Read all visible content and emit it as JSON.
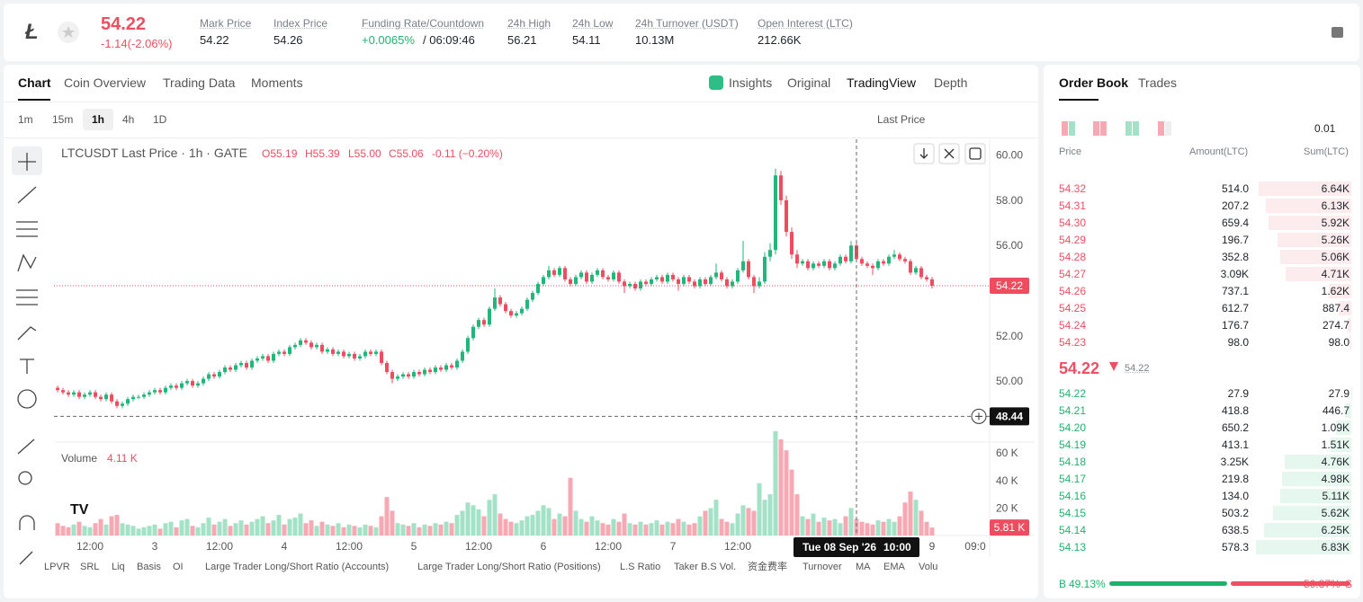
{
  "header": {
    "price": "54.22",
    "change": "-1.14(-2.06%)",
    "stats": [
      {
        "label": "Mark Price",
        "value": "54.22"
      },
      {
        "label": "Index Price",
        "value": "54.26"
      },
      {
        "label": "Funding Rate/Countdown",
        "value": "+0.0065%",
        "countdown": "/ 06:09:46"
      },
      {
        "label": "24h High",
        "value": "56.21"
      },
      {
        "label": "24h Low",
        "value": "54.11"
      },
      {
        "label": "24h Turnover (USDT)",
        "value": "10.13M"
      },
      {
        "label": "Open Interest (LTC)",
        "value": "212.66K"
      }
    ]
  },
  "tabs": [
    "Chart",
    "Coin Overview",
    "Trading Data",
    "Moments"
  ],
  "views": [
    "Insights",
    "Original",
    "TradingView",
    "Depth"
  ],
  "intervals": [
    "1m",
    "15m",
    "1h",
    "4h",
    "1D"
  ],
  "price_type": "Last Price",
  "chart_data": {
    "type": "candlestick",
    "title": "LTCUSDT Last Price · 1h · GATE",
    "ohlc_legend": [
      "O55.19",
      "H55.39",
      "L55.00",
      "C55.06",
      "-0.11 (−0.20%)"
    ],
    "up_color": "#22b67a",
    "down_color": "#ee4d5f",
    "up_volume_color": "#a4e2c8",
    "down_volume_color": "#f6a9b3",
    "xlim": [
      -0.67,
      172.67
    ],
    "ylim": [
      47.3,
      60.7
    ],
    "yticks": [
      {
        "value": 60,
        "label": "60.00"
      },
      {
        "value": 58,
        "label": "58.00"
      },
      {
        "value": 56,
        "label": "56.00"
      },
      {
        "value": 52,
        "label": "52.00"
      },
      {
        "value": 50,
        "label": "50.00"
      }
    ],
    "xticks": [
      {
        "value": 6,
        "label": "12:00"
      },
      {
        "value": 18,
        "label": "3"
      },
      {
        "value": 30,
        "label": "12:00"
      },
      {
        "value": 42,
        "label": "4"
      },
      {
        "value": 54,
        "label": "12:00"
      },
      {
        "value": 66,
        "label": "5"
      },
      {
        "value": 78,
        "label": "12:00"
      },
      {
        "value": 90,
        "label": "6"
      },
      {
        "value": 102,
        "label": "12:00"
      },
      {
        "value": 114,
        "label": "7"
      },
      {
        "value": 126,
        "label": "12:00"
      },
      {
        "value": 162,
        "label": "9"
      },
      {
        "value": 170,
        "label": "09:0"
      }
    ],
    "open": [
      49.7,
      49.6,
      49.5,
      49.4,
      49.5,
      49.3,
      49.4,
      49.5,
      49.3,
      49.2,
      49.4,
      49.1,
      48.9,
      49.0,
      49.2,
      49.3,
      49.3,
      49.4,
      49.5,
      49.6,
      49.5,
      49.7,
      49.8,
      49.7,
      49.9,
      50.0,
      49.8,
      49.9,
      50.1,
      50.3,
      50.2,
      50.4,
      50.6,
      50.5,
      50.7,
      50.8,
      50.6,
      50.9,
      51.0,
      51.1,
      50.9,
      51.2,
      51.3,
      51.2,
      51.5,
      51.6,
      51.8,
      51.7,
      51.5,
      51.6,
      51.3,
      51.4,
      51.2,
      51.3,
      51.1,
      51.2,
      51.0,
      51.1,
      51.3,
      51.2,
      51.3,
      50.8,
      50.4,
      50.1,
      50.2,
      50.3,
      50.2,
      50.4,
      50.3,
      50.5,
      50.4,
      50.6,
      50.5,
      50.7,
      50.6,
      50.9,
      51.3,
      51.9,
      52.4,
      52.7,
      52.5,
      53.2,
      53.7,
      53.4,
      53.1,
      52.9,
      53.0,
      53.2,
      53.6,
      53.9,
      54.3,
      54.6,
      54.9,
      54.7,
      55.0,
      54.5,
      54.3,
      54.6,
      54.8,
      54.4,
      54.7,
      54.9,
      54.6,
      54.5,
      54.8,
      54.4,
      54.2,
      54.3,
      54.1,
      54.4,
      54.3,
      54.5,
      54.6,
      54.4,
      54.7,
      54.5,
      54.3,
      54.6,
      54.4,
      54.2,
      54.5,
      54.3,
      54.6,
      54.8,
      54.5,
      54.2,
      54.4,
      54.9,
      55.3,
      54.6,
      54.2,
      54.4,
      55.5,
      55.8,
      59.1,
      58.0,
      56.6,
      55.6,
      55.2,
      55.3,
      55.0,
      55.2,
      55.1,
      55.3,
      55.0,
      55.2,
      55.5,
      55.3,
      56.0,
      55.4,
      55.2,
      55.1,
      55.0,
      55.3,
      55.2,
      55.5,
      55.6,
      55.4,
      55.3,
      54.8,
      55.0,
      54.6,
      54.5
    ],
    "high": [
      49.8,
      49.7,
      49.6,
      49.6,
      49.6,
      49.5,
      49.6,
      49.6,
      49.4,
      49.5,
      49.5,
      49.2,
      49.1,
      49.3,
      49.4,
      49.4,
      49.5,
      49.6,
      49.7,
      49.7,
      49.8,
      49.9,
      49.9,
      50.0,
      50.1,
      50.1,
      50.0,
      50.2,
      50.4,
      50.4,
      50.5,
      50.7,
      50.7,
      50.8,
      50.9,
      50.9,
      51.0,
      51.1,
      51.2,
      51.2,
      51.3,
      51.4,
      51.4,
      51.6,
      51.7,
      51.9,
      51.9,
      51.8,
      51.7,
      51.7,
      51.5,
      51.5,
      51.4,
      51.4,
      51.3,
      51.3,
      51.2,
      51.4,
      51.4,
      51.4,
      51.4,
      50.9,
      50.5,
      50.3,
      50.4,
      50.4,
      50.5,
      50.5,
      50.6,
      50.6,
      50.7,
      50.7,
      50.8,
      50.8,
      51.0,
      51.4,
      52.0,
      52.5,
      52.8,
      52.8,
      53.3,
      54.1,
      53.8,
      53.5,
      53.2,
      53.1,
      53.3,
      53.7,
      54.0,
      54.4,
      54.7,
      55.1,
      55.0,
      55.1,
      55.1,
      54.6,
      54.7,
      54.9,
      54.9,
      54.8,
      55.0,
      55.0,
      54.7,
      54.9,
      54.9,
      54.5,
      54.4,
      54.4,
      54.5,
      54.5,
      54.6,
      54.7,
      54.7,
      54.8,
      54.8,
      54.6,
      54.7,
      54.7,
      54.5,
      54.6,
      54.6,
      54.7,
      55.2,
      54.9,
      54.6,
      54.5,
      55.0,
      56.2,
      55.4,
      54.7,
      54.6,
      55.7,
      56.1,
      59.4,
      59.3,
      58.2,
      56.8,
      55.8,
      55.4,
      55.4,
      55.3,
      55.3,
      55.4,
      55.4,
      55.3,
      55.6,
      55.6,
      56.2,
      56.1,
      55.5,
      55.3,
      55.2,
      55.4,
      55.4,
      55.6,
      55.8,
      55.7,
      55.5,
      55.4,
      55.1,
      55.1,
      54.7,
      54.6
    ],
    "low": [
      49.5,
      49.4,
      49.3,
      49.3,
      49.2,
      49.2,
      49.3,
      49.2,
      49.1,
      49.1,
      49.0,
      48.8,
      48.8,
      48.9,
      49.1,
      49.2,
      49.2,
      49.3,
      49.4,
      49.4,
      49.4,
      49.6,
      49.6,
      49.6,
      49.8,
      49.7,
      49.7,
      49.8,
      50.0,
      50.1,
      50.1,
      50.3,
      50.4,
      50.4,
      50.6,
      50.5,
      50.5,
      50.8,
      50.9,
      50.8,
      50.8,
      51.1,
      51.1,
      51.1,
      51.4,
      51.5,
      51.6,
      51.4,
      51.4,
      51.2,
      51.2,
      51.1,
      51.1,
      51.0,
      51.0,
      50.9,
      50.9,
      51.0,
      51.1,
      51.1,
      50.7,
      50.3,
      49.9,
      50.0,
      50.1,
      50.1,
      50.1,
      50.2,
      50.2,
      50.3,
      50.3,
      50.4,
      50.4,
      50.5,
      50.5,
      50.8,
      51.2,
      51.8,
      52.3,
      52.4,
      52.4,
      53.1,
      53.3,
      53.0,
      52.8,
      52.8,
      52.9,
      53.1,
      53.5,
      53.8,
      54.2,
      54.5,
      54.6,
      54.6,
      54.4,
      54.2,
      54.2,
      54.5,
      54.3,
      54.3,
      54.6,
      54.5,
      54.4,
      54.4,
      54.3,
      53.9,
      54.1,
      54.0,
      54.0,
      54.2,
      54.2,
      54.4,
      54.3,
      54.3,
      54.4,
      54.0,
      54.2,
      54.3,
      54.1,
      54.1,
      54.2,
      54.2,
      54.5,
      54.4,
      54.1,
      54.1,
      54.3,
      54.8,
      54.5,
      53.9,
      54.1,
      54.3,
      55.3,
      55.6,
      57.8,
      56.4,
      55.4,
      55.0,
      55.1,
      54.9,
      54.9,
      55.0,
      55.0,
      54.9,
      54.9,
      55.1,
      55.2,
      55.2,
      55.3,
      55.1,
      55.0,
      54.7,
      54.9,
      55.1,
      55.1,
      55.4,
      55.3,
      55.2,
      54.7,
      54.7,
      54.5,
      54.4,
      54.1
    ],
    "close": [
      49.6,
      49.5,
      49.4,
      49.5,
      49.3,
      49.4,
      49.5,
      49.3,
      49.2,
      49.4,
      49.1,
      48.9,
      49.0,
      49.2,
      49.3,
      49.3,
      49.4,
      49.5,
      49.6,
      49.5,
      49.7,
      49.8,
      49.7,
      49.9,
      50.0,
      49.8,
      49.9,
      50.1,
      50.3,
      50.2,
      50.4,
      50.6,
      50.5,
      50.7,
      50.8,
      50.6,
      50.9,
      51.0,
      51.1,
      50.9,
      51.2,
      51.3,
      51.2,
      51.5,
      51.6,
      51.8,
      51.7,
      51.5,
      51.6,
      51.3,
      51.4,
      51.2,
      51.3,
      51.1,
      51.2,
      51.0,
      51.1,
      51.3,
      51.2,
      51.3,
      50.8,
      50.4,
      50.1,
      50.2,
      50.3,
      50.2,
      50.4,
      50.3,
      50.5,
      50.4,
      50.6,
      50.5,
      50.7,
      50.6,
      50.9,
      51.3,
      51.9,
      52.4,
      52.7,
      52.5,
      53.2,
      53.7,
      53.4,
      53.1,
      52.9,
      53.0,
      53.2,
      53.6,
      53.9,
      54.3,
      54.6,
      54.9,
      54.7,
      55.0,
      54.5,
      54.3,
      54.6,
      54.8,
      54.4,
      54.7,
      54.9,
      54.6,
      54.5,
      54.8,
      54.4,
      54.2,
      54.3,
      54.1,
      54.4,
      54.3,
      54.5,
      54.6,
      54.4,
      54.7,
      54.5,
      54.3,
      54.6,
      54.4,
      54.2,
      54.5,
      54.3,
      54.6,
      54.8,
      54.5,
      54.2,
      54.4,
      54.9,
      55.3,
      54.6,
      54.2,
      54.4,
      55.5,
      55.8,
      59.1,
      58.0,
      56.6,
      55.6,
      55.2,
      55.3,
      55.0,
      55.2,
      55.1,
      55.3,
      55.0,
      55.2,
      55.5,
      55.3,
      56.0,
      55.4,
      55.2,
      55.1,
      55.0,
      55.3,
      55.2,
      55.5,
      55.6,
      55.4,
      55.3,
      54.8,
      55.0,
      54.6,
      54.5,
      54.22
    ],
    "last_price_label": "54.22",
    "crosshair": {
      "x": 148,
      "y": 48.44,
      "y_label": "48.44",
      "date": "Tue 08 Sep '26",
      "time": "10:00"
    },
    "volume": {
      "name": "Volume",
      "legend_value": "4.11 K",
      "ylim": [
        0,
        68000
      ],
      "yticks": [
        {
          "value": 60000,
          "label": "60 K"
        },
        {
          "value": 40000,
          "label": "40 K"
        },
        {
          "value": 20000,
          "label": "20 K"
        }
      ],
      "last_label": "5.81 K",
      "values": [
        9000,
        7000,
        6000,
        8000,
        10000,
        7000,
        6000,
        9000,
        12000,
        8000,
        14000,
        15000,
        9000,
        8000,
        7000,
        5000,
        6000,
        7000,
        8000,
        5000,
        9000,
        10000,
        6000,
        11000,
        12000,
        7000,
        6000,
        9000,
        13000,
        8000,
        10000,
        12000,
        7000,
        9000,
        11000,
        8000,
        10000,
        12000,
        14000,
        9000,
        11000,
        15000,
        8000,
        12000,
        13000,
        16000,
        9000,
        11000,
        7000,
        10000,
        8000,
        7000,
        9000,
        6000,
        8000,
        7000,
        6000,
        8000,
        7000,
        6000,
        14000,
        28000,
        18000,
        9000,
        8000,
        7000,
        9000,
        6000,
        8000,
        7000,
        9000,
        8000,
        10000,
        9000,
        15000,
        18000,
        24000,
        22000,
        19000,
        14000,
        26000,
        30000,
        16000,
        12000,
        10000,
        9000,
        11000,
        14000,
        15000,
        18000,
        22000,
        20000,
        12000,
        16000,
        14000,
        42000,
        18000,
        12000,
        10000,
        14000,
        11000,
        9000,
        8000,
        12000,
        10000,
        16000,
        9000,
        8000,
        10000,
        8000,
        9000,
        11000,
        8000,
        10000,
        9000,
        12000,
        10000,
        8000,
        9000,
        14000,
        18000,
        20000,
        26000,
        12000,
        10000,
        9000,
        16000,
        22000,
        20000,
        18000,
        38000,
        26000,
        30000,
        76000,
        70000,
        62000,
        48000,
        30000,
        14000,
        12000,
        16000,
        10000,
        13000,
        11000,
        12000,
        9000,
        14000,
        20000,
        12000,
        10000,
        9000,
        8000,
        11000,
        10000,
        12000,
        10000,
        14000,
        24000,
        32000,
        26000,
        18000,
        10000,
        5810
      ]
    }
  },
  "indicators": [
    "LPVR",
    "SRL",
    "Liq",
    "Basis",
    "OI",
    "Large Trader Long/Short Ratio (Accounts)",
    "Large Trader Long/Short Ratio (Positions)",
    "L.S Ratio",
    "Taker B.S Vol.",
    "资金费率",
    "Turnover",
    "MA",
    "EMA",
    "Volu"
  ],
  "order_book": {
    "tabs": [
      "Order Book",
      "Trades"
    ],
    "precision": "0.01",
    "columns": [
      "Price",
      "Amount(LTC)",
      "Sum(LTC)"
    ],
    "asks": [
      {
        "price": "54.32",
        "amount": "514.0",
        "sum": {
          "value": 6640,
          "label": "6.64K"
        }
      },
      {
        "price": "54.31",
        "amount": "207.2",
        "sum": {
          "value": 6130,
          "label": "6.13K"
        }
      },
      {
        "price": "54.30",
        "amount": "659.4",
        "sum": {
          "value": 5920,
          "label": "5.92K"
        }
      },
      {
        "price": "54.29",
        "amount": "196.7",
        "sum": {
          "value": 5260,
          "label": "5.26K"
        }
      },
      {
        "price": "54.28",
        "amount": "352.8",
        "sum": {
          "value": 5060,
          "label": "5.06K"
        }
      },
      {
        "price": "54.27",
        "amount": "3.09K",
        "sum": {
          "value": 4710,
          "label": "4.71K"
        }
      },
      {
        "price": "54.26",
        "amount": "737.1",
        "sum": {
          "value": 1620,
          "label": "1.62K"
        }
      },
      {
        "price": "54.25",
        "amount": "612.7",
        "sum": {
          "value": 887.4,
          "label": "887.4"
        }
      },
      {
        "price": "54.24",
        "amount": "176.7",
        "sum": {
          "value": 274.7,
          "label": "274.7"
        }
      },
      {
        "price": "54.23",
        "amount": "98.0",
        "sum": {
          "value": 98,
          "label": "98.0"
        }
      }
    ],
    "mid": {
      "price": "54.22",
      "mark": "54.22"
    },
    "bids": [
      {
        "price": "54.22",
        "amount": "27.9",
        "sum": {
          "value": 27.9,
          "label": "27.9"
        }
      },
      {
        "price": "54.21",
        "amount": "418.8",
        "sum": {
          "value": 446.7,
          "label": "446.7"
        }
      },
      {
        "price": "54.20",
        "amount": "650.2",
        "sum": {
          "value": 1090,
          "label": "1.09K"
        }
      },
      {
        "price": "54.19",
        "amount": "413.1",
        "sum": {
          "value": 1510,
          "label": "1.51K"
        }
      },
      {
        "price": "54.18",
        "amount": "3.25K",
        "sum": {
          "value": 4760,
          "label": "4.76K"
        }
      },
      {
        "price": "54.17",
        "amount": "219.8",
        "sum": {
          "value": 4980,
          "label": "4.98K"
        }
      },
      {
        "price": "54.16",
        "amount": "134.0",
        "sum": {
          "value": 5110,
          "label": "5.11K"
        }
      },
      {
        "price": "54.15",
        "amount": "503.2",
        "sum": {
          "value": 5620,
          "label": "5.62K"
        }
      },
      {
        "price": "54.14",
        "amount": "638.5",
        "sum": {
          "value": 6250,
          "label": "6.25K"
        }
      },
      {
        "price": "54.13",
        "amount": "578.3",
        "sum": {
          "value": 6830,
          "label": "6.83K"
        }
      }
    ],
    "ratio": {
      "buy_label": "B",
      "buy": {
        "value": 49.13,
        "label": "49.13%"
      },
      "sell": {
        "value": 50.87,
        "label": "50.87%"
      },
      "sell_label": "S"
    }
  }
}
